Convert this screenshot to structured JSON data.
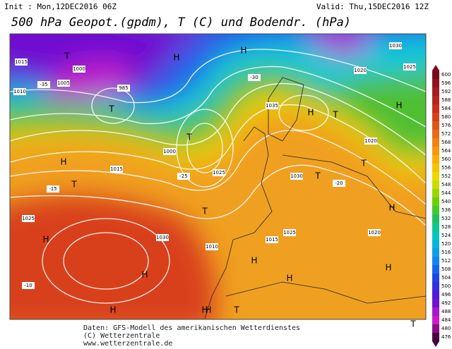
{
  "header": {
    "init": "Init : Mon,12DEC2016 06Z",
    "valid": "Valid: Thu,15DEC2016 12Z",
    "title": "500 hPa Geopot.(gpdm), T (C) und Bodendr. (hPa)"
  },
  "colorbar": {
    "ticks": [
      600,
      596,
      592,
      588,
      584,
      580,
      576,
      572,
      568,
      564,
      560,
      556,
      552,
      548,
      544,
      540,
      536,
      532,
      528,
      524,
      520,
      516,
      512,
      508,
      504,
      500,
      496,
      492,
      488,
      484,
      480,
      476
    ]
  },
  "map": {
    "labels": [
      "H",
      "T",
      "T",
      "H",
      "T",
      "H",
      "H",
      "T",
      "T",
      "T",
      "H",
      "T",
      "H",
      "H",
      "H",
      "H",
      "H",
      "T",
      "H",
      "H",
      "T",
      "H",
      "T",
      "H",
      "1015",
      "1000",
      "1005",
      "985",
      "1010",
      "1000",
      "1015",
      "1025",
      "1030",
      "1025",
      "1020",
      "1015",
      "1030",
      "1025",
      "1020",
      "1010",
      "1035",
      "1030",
      "1025",
      "1020",
      "-35",
      "-30",
      "-25",
      "-20",
      "-15",
      "-10"
    ]
  },
  "footer": [
    "Daten: GFS-Modell des amerikanischen Wetterdienstes",
    "(C) Wetterzentrale",
    "www.wetterzentrale.de"
  ]
}
